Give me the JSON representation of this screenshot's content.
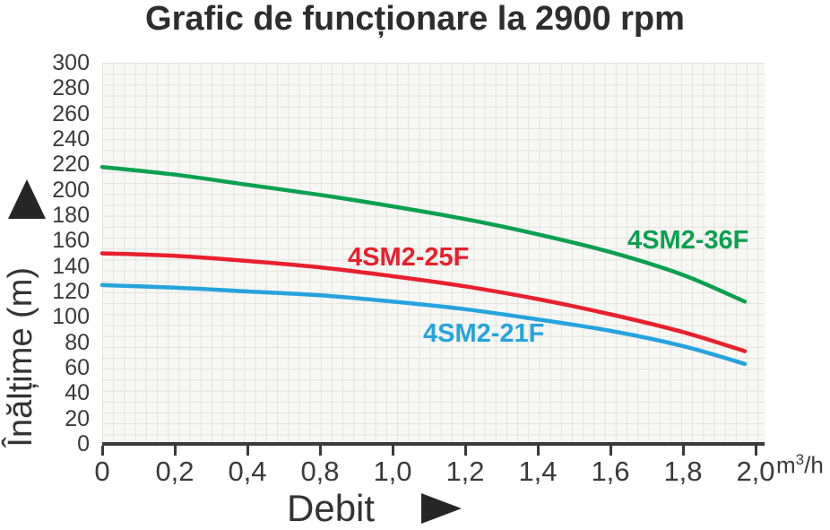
{
  "chart_data": {
    "type": "line",
    "title": "Grafic de funcționare la 2900 rpm",
    "xlabel": "Debit",
    "ylabel": "Înălțime (m)",
    "x_unit": {
      "base": "m",
      "exp": "3",
      "rest": "/h"
    },
    "x_tick_labels": [
      "0",
      "0,2",
      "0,4",
      "0,8",
      "1,0",
      "1,2",
      "1,4",
      "1,6",
      "1,8",
      "2,0"
    ],
    "y_ticks": [
      0,
      20,
      40,
      60,
      80,
      100,
      120,
      140,
      160,
      180,
      200,
      220,
      240,
      260,
      280,
      300
    ],
    "ylim": [
      0,
      300
    ],
    "grid": true,
    "legend_position": "labels-on-curves",
    "series": [
      {
        "name": "4SM2-36F",
        "color": "#0aa04f",
        "points": [
          {
            "tick_pos": 0,
            "head_m": 218
          },
          {
            "tick_pos": 1,
            "head_m": 212
          },
          {
            "tick_pos": 2,
            "head_m": 204
          },
          {
            "tick_pos": 3,
            "head_m": 196
          },
          {
            "tick_pos": 4,
            "head_m": 187
          },
          {
            "tick_pos": 5,
            "head_m": 177
          },
          {
            "tick_pos": 6,
            "head_m": 165
          },
          {
            "tick_pos": 7,
            "head_m": 151
          },
          {
            "tick_pos": 8,
            "head_m": 133
          },
          {
            "tick_pos": 8.85,
            "head_m": 112
          }
        ]
      },
      {
        "name": "4SM2-25F",
        "color": "#e8202b",
        "points": [
          {
            "tick_pos": 0,
            "head_m": 150
          },
          {
            "tick_pos": 1,
            "head_m": 148
          },
          {
            "tick_pos": 2,
            "head_m": 144
          },
          {
            "tick_pos": 3,
            "head_m": 139
          },
          {
            "tick_pos": 4,
            "head_m": 132
          },
          {
            "tick_pos": 5,
            "head_m": 124
          },
          {
            "tick_pos": 6,
            "head_m": 114
          },
          {
            "tick_pos": 7,
            "head_m": 102
          },
          {
            "tick_pos": 8,
            "head_m": 88
          },
          {
            "tick_pos": 8.85,
            "head_m": 73
          }
        ]
      },
      {
        "name": "4SM2-21F",
        "color": "#25a3dd",
        "points": [
          {
            "tick_pos": 0,
            "head_m": 125
          },
          {
            "tick_pos": 1,
            "head_m": 123
          },
          {
            "tick_pos": 2,
            "head_m": 120
          },
          {
            "tick_pos": 3,
            "head_m": 117
          },
          {
            "tick_pos": 4,
            "head_m": 112
          },
          {
            "tick_pos": 5,
            "head_m": 106
          },
          {
            "tick_pos": 6,
            "head_m": 98
          },
          {
            "tick_pos": 7,
            "head_m": 89
          },
          {
            "tick_pos": 8,
            "head_m": 77
          },
          {
            "tick_pos": 8.85,
            "head_m": 63
          }
        ]
      }
    ]
  }
}
